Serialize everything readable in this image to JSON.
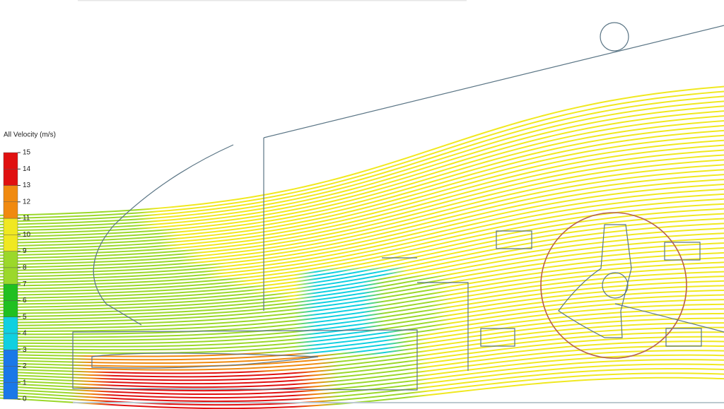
{
  "legend": {
    "title": "All Velocity (m/s)",
    "ticks": [
      0,
      1,
      2,
      3,
      4,
      5,
      6,
      7,
      8,
      9,
      10,
      11,
      12,
      13,
      14,
      15
    ]
  }
}
